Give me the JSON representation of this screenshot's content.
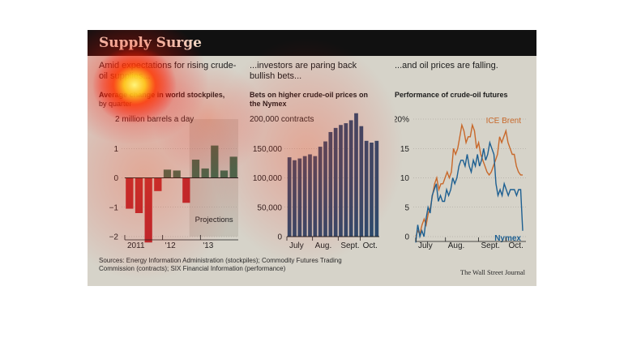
{
  "title": "Supply Surge",
  "panels": [
    {
      "heading": "Amid expectations for rising crude-oil supplies...",
      "subtitle": "Average change in world stockpiles,",
      "subtitle2": "by quarter"
    },
    {
      "heading": "...investors are paring back bullish bets...",
      "subtitle": "Bets on higher crude-oil prices on the Nymex"
    },
    {
      "heading": "...and oil prices are falling.",
      "subtitle": "Performance of crude-oil futures"
    }
  ],
  "sources": "Sources: Energy Information Administration (stockpiles); Commodity Futures Trading Commission (contracts); SIX Financial Information (performance)",
  "credit": "The Wall Street Journal",
  "chart_data": [
    {
      "type": "bar",
      "unit_label": "2 million barrels a day",
      "annotation": "Projections",
      "ylim": [
        -2,
        2
      ],
      "y_ticks": [
        1,
        0,
        -1,
        -2
      ],
      "y_tick_labels": [
        "1",
        "0",
        "−1",
        "−2"
      ],
      "x_tick_labels": [
        "2011",
        "'12",
        "'13"
      ],
      "values": [
        -1.05,
        -1.2,
        -2.2,
        -0.45,
        0.28,
        0.25,
        -0.85,
        0.62,
        0.32,
        1.1,
        0.25,
        0.72
      ],
      "projection_start_index": 7,
      "colors": {
        "positive": "#3f6b4f",
        "negative": "#b8292f",
        "projection_bg": "#c5c1b6"
      }
    },
    {
      "type": "bar",
      "unit_label": "200,000 contracts",
      "ylim": [
        0,
        200000
      ],
      "y_ticks": [
        150000,
        100000,
        50000,
        0
      ],
      "y_tick_labels": [
        "150,000",
        "100,000",
        "50,000",
        "0"
      ],
      "x_tick_labels": [
        "July",
        "Aug.",
        "Sept.",
        "Oct."
      ],
      "values": [
        135000,
        130000,
        133000,
        137000,
        140000,
        137000,
        153000,
        162000,
        178000,
        185000,
        190000,
        193000,
        198000,
        210000,
        188000,
        163000,
        160000,
        163000
      ],
      "colors": {
        "bar": "#2d4a6c"
      }
    },
    {
      "type": "line",
      "ylim": [
        0,
        20
      ],
      "y_ticks": [
        20,
        15,
        10,
        5,
        0
      ],
      "y_tick_labels": [
        "20%",
        "15",
        "10",
        "5",
        "0"
      ],
      "x_tick_labels": [
        "July",
        "Aug.",
        "Sept.",
        "Oct."
      ],
      "series": [
        {
          "name": "ICE Brent",
          "color": "#c8682a",
          "values": [
            0,
            1,
            0.5,
            2,
            3,
            2,
            4,
            5,
            7,
            9,
            10,
            8,
            9,
            9,
            10,
            11,
            10,
            11,
            15,
            14,
            15,
            17,
            19,
            18,
            16,
            17,
            17,
            19,
            18,
            15,
            16,
            14,
            13,
            12,
            11,
            10.5,
            11,
            12,
            13,
            14,
            17,
            16,
            17,
            18,
            16,
            15,
            14,
            14,
            12,
            11,
            10.5,
            10.5
          ]
        },
        {
          "name": "Nymex",
          "color": "#1d5f91",
          "values": [
            -1,
            2,
            0,
            1,
            0,
            3,
            5,
            4,
            7,
            8,
            9,
            6,
            7,
            6,
            6,
            8,
            7,
            8,
            10,
            9,
            10,
            12,
            13,
            13,
            12,
            14,
            12,
            11,
            13,
            12,
            14,
            12,
            13,
            15,
            13,
            14,
            16,
            15,
            14,
            9,
            7,
            8,
            7,
            9,
            8,
            7,
            8,
            8,
            8,
            7,
            8,
            8,
            1
          ]
        }
      ]
    }
  ]
}
